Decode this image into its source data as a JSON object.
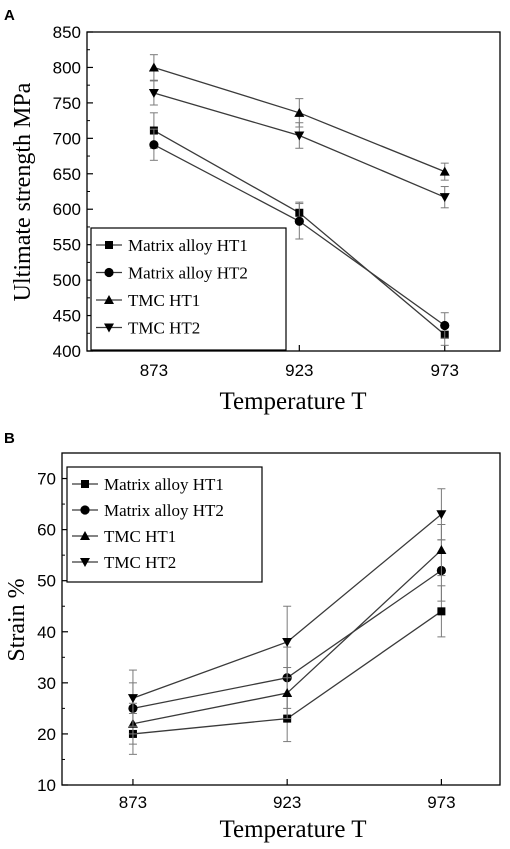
{
  "colors": {
    "line": "#3a3a3a",
    "frame": "#000000",
    "errorbar": "#7a7a7a",
    "background": "#ffffff"
  },
  "chart_data": [
    {
      "panel_label": "A",
      "type": "line",
      "xlabel": "Temperature T",
      "ylabel": "Ultimate strength MPa",
      "x": [
        873,
        923,
        973
      ],
      "xticks": [
        873,
        923,
        973
      ],
      "xlim": [
        850,
        992
      ],
      "ylim": [
        400,
        850
      ],
      "yticks": [
        400,
        450,
        500,
        550,
        600,
        650,
        700,
        750,
        800,
        850
      ],
      "legend_position": "bottom-left",
      "series": [
        {
          "name": "Matrix alloy  HT1",
          "marker": "square",
          "values": [
            711,
            595,
            423
          ],
          "errors": [
            25,
            15,
            15
          ]
        },
        {
          "name": "Matrix alloy  HT2",
          "marker": "circle",
          "values": [
            691,
            583,
            436
          ],
          "errors": [
            22,
            25,
            18
          ]
        },
        {
          "name": "TMC  HT1",
          "marker": "triangle-up",
          "values": [
            800,
            736,
            653
          ],
          "errors": [
            18,
            20,
            12
          ]
        },
        {
          "name": "TMC  HT2",
          "marker": "triangle-down",
          "values": [
            764,
            704,
            617
          ],
          "errors": [
            17,
            18,
            15
          ]
        }
      ]
    },
    {
      "panel_label": "B",
      "type": "line",
      "xlabel": "Temperature T",
      "ylabel": "Strain %",
      "x": [
        873,
        923,
        973
      ],
      "xticks": [
        873,
        923,
        973
      ],
      "xlim": [
        850,
        992
      ],
      "ylim": [
        10,
        75
      ],
      "yticks": [
        10,
        20,
        30,
        40,
        50,
        60,
        70
      ],
      "legend_position": "top-left",
      "series": [
        {
          "name": "Matrix alloy  HT1",
          "marker": "square",
          "values": [
            20,
            23,
            44
          ],
          "errors": [
            4,
            4.5,
            5
          ]
        },
        {
          "name": "Matrix alloy  HT2",
          "marker": "circle",
          "values": [
            25,
            31,
            52
          ],
          "errors": [
            5,
            6,
            6
          ]
        },
        {
          "name": "TMC  HT1",
          "marker": "triangle-up",
          "values": [
            22,
            28,
            56
          ],
          "errors": [
            4,
            5,
            5
          ]
        },
        {
          "name": "TMC  HT2",
          "marker": "triangle-down",
          "values": [
            27,
            38,
            63
          ],
          "errors": [
            5.5,
            7,
            5
          ]
        }
      ]
    }
  ]
}
